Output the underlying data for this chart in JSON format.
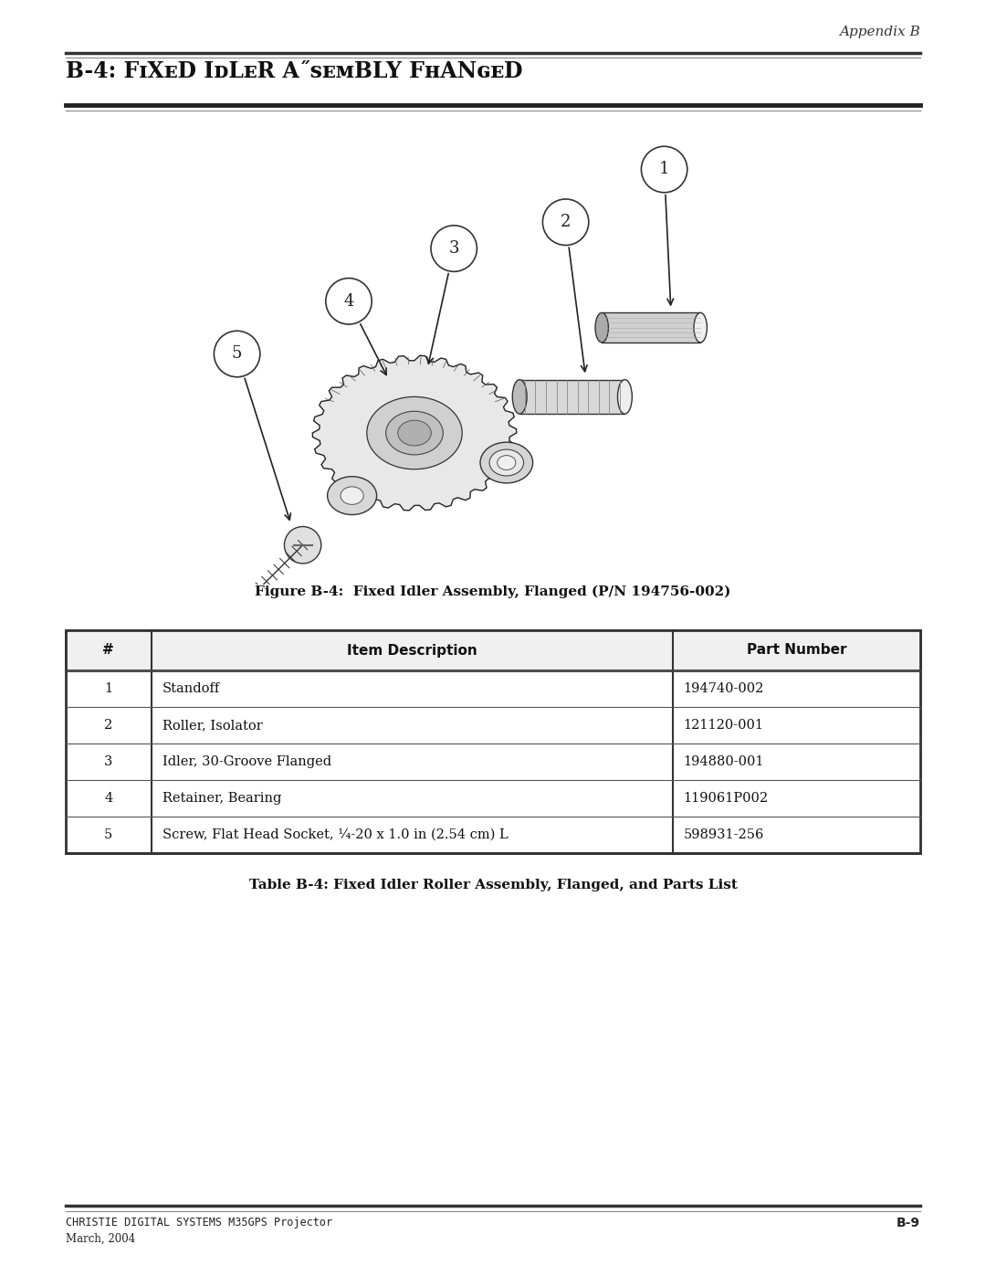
{
  "page_title": "Appendix B",
  "section_title_b4": "B-4: ",
  "section_title_rest": "Fixed Idler Assembly Flanged",
  "figure_caption": "Figure B-4:  Fixed Idler Assembly, Flanged (P/N 194756-002)",
  "table_caption": "Table B-4: Fixed Idler Roller Assembly, Flanged, and Parts List",
  "footer_left_line1": "CHRISTIE DIGITAL SYSTEMS M35GPS Projector",
  "footer_left_line2": "March, 2004",
  "footer_right": "B-9",
  "table_headers": [
    "#",
    "Item Description",
    "Part Number"
  ],
  "table_rows": [
    [
      "1",
      "Standoff",
      "194740-002"
    ],
    [
      "2",
      "Roller, Isolator",
      "121120-001"
    ],
    [
      "3",
      "Idler, 30-Groove Flanged",
      "194880-001"
    ],
    [
      "4",
      "Retainer, Bearing",
      "119061P002"
    ],
    [
      "5",
      "Screw, Flat Head Socket, ¼-20 x 1.0 in (2.54 cm) L",
      "598931-256"
    ]
  ],
  "background_color": "#ffffff",
  "text_color": "#000000"
}
